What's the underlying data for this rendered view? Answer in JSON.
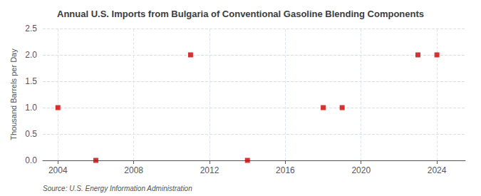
{
  "chart_data": {
    "type": "scatter",
    "title": "Annual U.S. Imports from Bulgaria of Conventional Gasoline Blending Components",
    "ylabel": "Thousand Barrels per Day",
    "annotations": [
      "Source: U.S. Energy Information Administration"
    ],
    "x": [
      2004,
      2006,
      2011,
      2014,
      2018,
      2019,
      2023,
      2024
    ],
    "values": [
      1.0,
      0.0,
      2.0,
      0.0,
      1.0,
      1.0,
      2.0,
      2.0
    ],
    "color": "#cc0000",
    "marker": "square",
    "xlim": [
      2003.2,
      2025.5
    ],
    "xticks": [
      2004,
      2008,
      2012,
      2016,
      2020,
      2024
    ],
    "ylim": [
      0.0,
      2.5
    ],
    "yticks": [
      {
        "value": 0.0,
        "label": "0.0"
      },
      0.5,
      {
        "value": 1.0,
        "label": "1.0"
      },
      1.5,
      {
        "value": 2.0,
        "label": "2.0"
      },
      2.5
    ],
    "grid": true
  }
}
